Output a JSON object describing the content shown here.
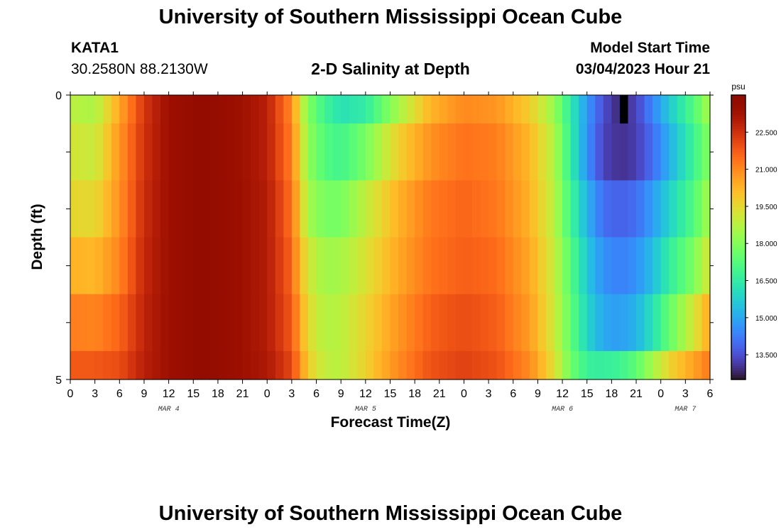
{
  "page": {
    "title_top": "University of Southern Mississippi Ocean Cube",
    "title_bottom": "University of Southern Mississippi Ocean Cube",
    "station": "KATA1",
    "coordinates": "30.2580N  88.2130W",
    "subtitle": "2-D Salinity at Depth",
    "model_start_label": "Model Start Time",
    "model_start_value": "03/04/2023 Hour 21"
  },
  "chart_data": {
    "type": "heatmap",
    "title": "2-D Salinity at Depth",
    "xlabel": "Forecast Time(Z)",
    "ylabel": "Depth (ft)",
    "y_tick_labels": [
      "0",
      "5"
    ],
    "ylim": [
      0,
      5
    ],
    "x_tick_labels": [
      "0",
      "3",
      "6",
      "9",
      "12",
      "15",
      "18",
      "21",
      "0",
      "3",
      "6",
      "9",
      "12",
      "15",
      "18",
      "21",
      "0",
      "3",
      "6",
      "9",
      "12",
      "15",
      "18",
      "21",
      "0",
      "3",
      "6"
    ],
    "date_labels": [
      {
        "label": "MAR 4",
        "hour": 12
      },
      {
        "label": "MAR 5",
        "hour": 36
      },
      {
        "label": "MAR 6",
        "hour": 60
      },
      {
        "label": "MAR 7",
        "hour": 75
      }
    ],
    "time_hours_range": [
      0,
      78
    ],
    "depth_levels_ft": [
      0.25,
      1.0,
      2.0,
      3.0,
      4.0,
      4.75
    ],
    "keyframes_hours": [
      0,
      3,
      6,
      9,
      12,
      16,
      20,
      24,
      27,
      28,
      29,
      31,
      33,
      36,
      40,
      44,
      48,
      52,
      56,
      59,
      61,
      63,
      65,
      67,
      69,
      71,
      73,
      76,
      78
    ],
    "keyframe_salinity_psu": [
      [
        18.8,
        18.6,
        20.5,
        22.4,
        23.4,
        23.7,
        23.5,
        22.9,
        21.0,
        19.3,
        18.0,
        16.8,
        16.2,
        16.5,
        18.5,
        20.3,
        21.0,
        20.8,
        19.8,
        18.3,
        16.5,
        14.7,
        13.5,
        12.8,
        13.3,
        14.4,
        15.6,
        17.2,
        18.6
      ],
      [
        19.2,
        19.0,
        20.8,
        22.5,
        23.4,
        23.7,
        23.5,
        22.9,
        21.2,
        19.6,
        18.2,
        17.2,
        16.9,
        17.8,
        19.7,
        20.9,
        21.4,
        21.2,
        20.2,
        18.7,
        16.6,
        14.6,
        13.3,
        13.0,
        13.2,
        14.0,
        15.1,
        16.8,
        18.1
      ],
      [
        19.6,
        19.5,
        20.9,
        22.6,
        23.4,
        23.7,
        23.5,
        23.0,
        21.4,
        19.9,
        18.5,
        17.8,
        17.8,
        18.9,
        20.3,
        21.3,
        21.6,
        21.3,
        20.3,
        18.8,
        16.9,
        15.2,
        14.0,
        13.8,
        14.0,
        14.8,
        15.8,
        17.2,
        18.6
      ],
      [
        20.3,
        20.2,
        21.1,
        22.7,
        23.4,
        23.7,
        23.5,
        23.0,
        21.6,
        20.2,
        19.2,
        18.4,
        18.5,
        19.3,
        20.5,
        21.4,
        21.7,
        21.5,
        20.5,
        19.0,
        17.3,
        15.6,
        14.6,
        14.3,
        14.6,
        15.4,
        16.5,
        17.9,
        19.3
      ],
      [
        21.2,
        21.1,
        21.6,
        22.8,
        23.4,
        23.7,
        23.5,
        23.0,
        21.8,
        20.6,
        19.5,
        18.7,
        18.8,
        19.6,
        20.8,
        21.7,
        22.0,
        21.7,
        20.7,
        19.1,
        17.5,
        15.9,
        15.0,
        14.8,
        15.2,
        16.2,
        17.5,
        19.2,
        20.5
      ],
      [
        21.8,
        21.8,
        22.0,
        22.9,
        23.4,
        23.7,
        23.5,
        23.1,
        22.1,
        21.0,
        19.8,
        18.9,
        18.8,
        19.7,
        21.0,
        21.9,
        22.2,
        21.9,
        21.0,
        19.4,
        17.7,
        16.7,
        16.6,
        16.8,
        17.4,
        18.5,
        19.6,
        20.6,
        21.3
      ]
    ],
    "colorbar": {
      "unit": "psu",
      "min": 12.5,
      "max": 24.0,
      "tick_labels": [
        "22.500",
        "21.000",
        "19.500",
        "18.000",
        "16.500",
        "15.000",
        "13.500"
      ],
      "tick_values": [
        22.5,
        21.0,
        19.5,
        18.0,
        16.5,
        15.0,
        13.5
      ],
      "colormap": "turbo"
    },
    "missing_marker_hour": 67,
    "missing_marker_color": "#000000",
    "grid": false
  }
}
